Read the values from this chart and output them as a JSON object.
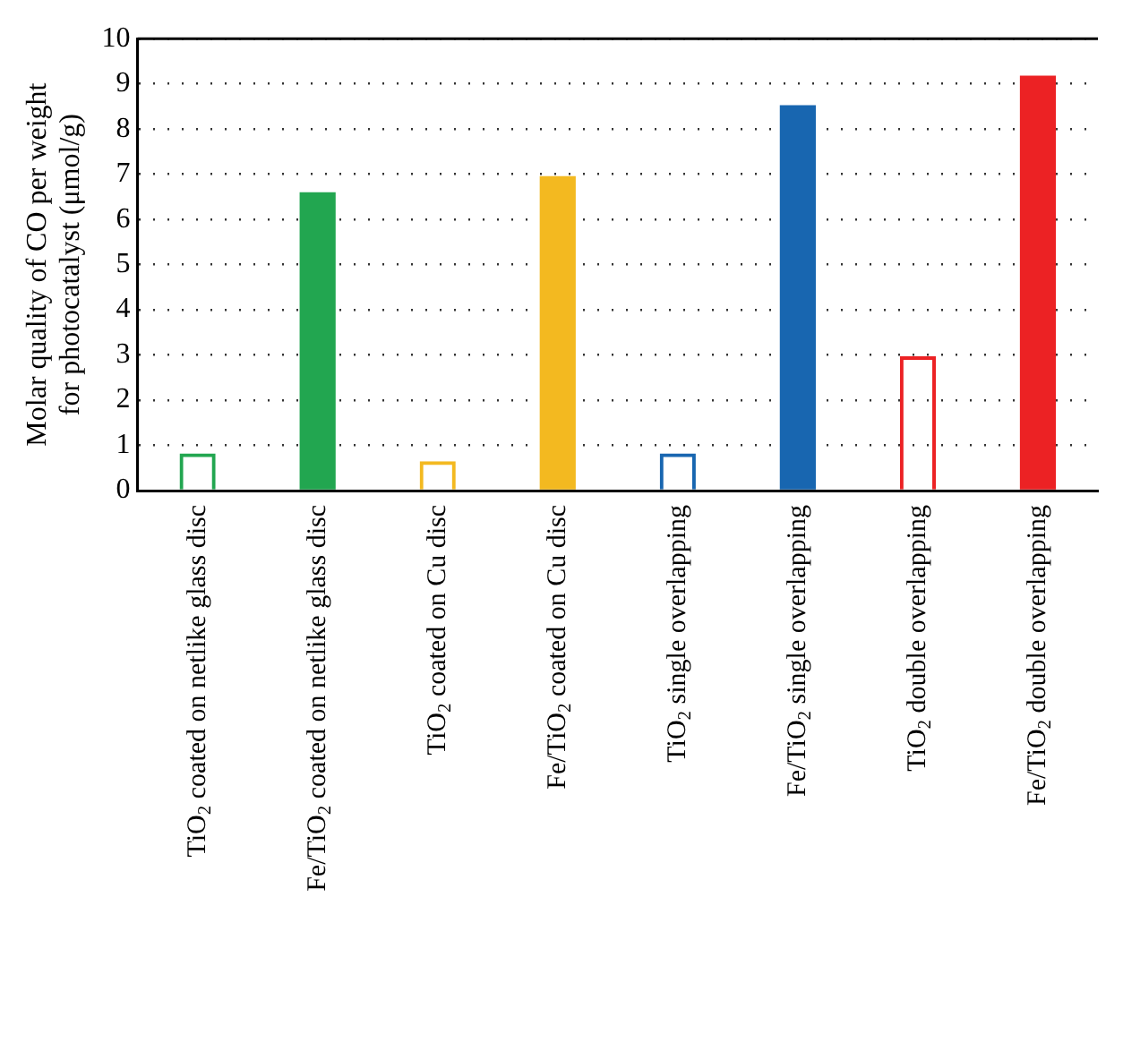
{
  "chart_data": {
    "type": "bar",
    "ylabel": "Molar quality of CO per weight\nfor photocatalyst (μmol/g)",
    "categories": [
      "TiO$_{2}$ coated on netlike glass disc",
      "Fe/TiO$_{2}$ coated on netlike glass disc",
      "TiO$_{2}$ coated on Cu disc",
      "Fe/TiO$_{2}$ coated on Cu disc",
      "TiO$_{2}$ single overlapping",
      "Fe/TiO$_{2}$ single overlapping",
      "TiO$_{2}$ double overlapping",
      "Fe/TiO$_{2}$ double overlapping"
    ],
    "series": [
      {
        "colors": [
          "#22a650",
          null,
          "#f3b920",
          null,
          "#1866b0",
          null,
          "#ec2224",
          null
        ],
        "values": [
          0.82,
          null,
          0.65,
          null,
          0.82,
          null,
          2.97,
          null
        ]
      },
      {
        "colors": [
          null,
          "#22a650",
          null,
          "#f3b920",
          null,
          "#1866b0",
          null,
          "#ec2224"
        ],
        "values": [
          null,
          6.6,
          null,
          6.96,
          null,
          8.53,
          null,
          9.18
        ]
      }
    ],
    "ylim": [
      0,
      10
    ],
    "yticks": [
      0,
      1,
      2,
      3,
      4,
      5,
      6,
      7,
      8,
      9,
      10
    ],
    "grid": "y",
    "legend": false
  }
}
